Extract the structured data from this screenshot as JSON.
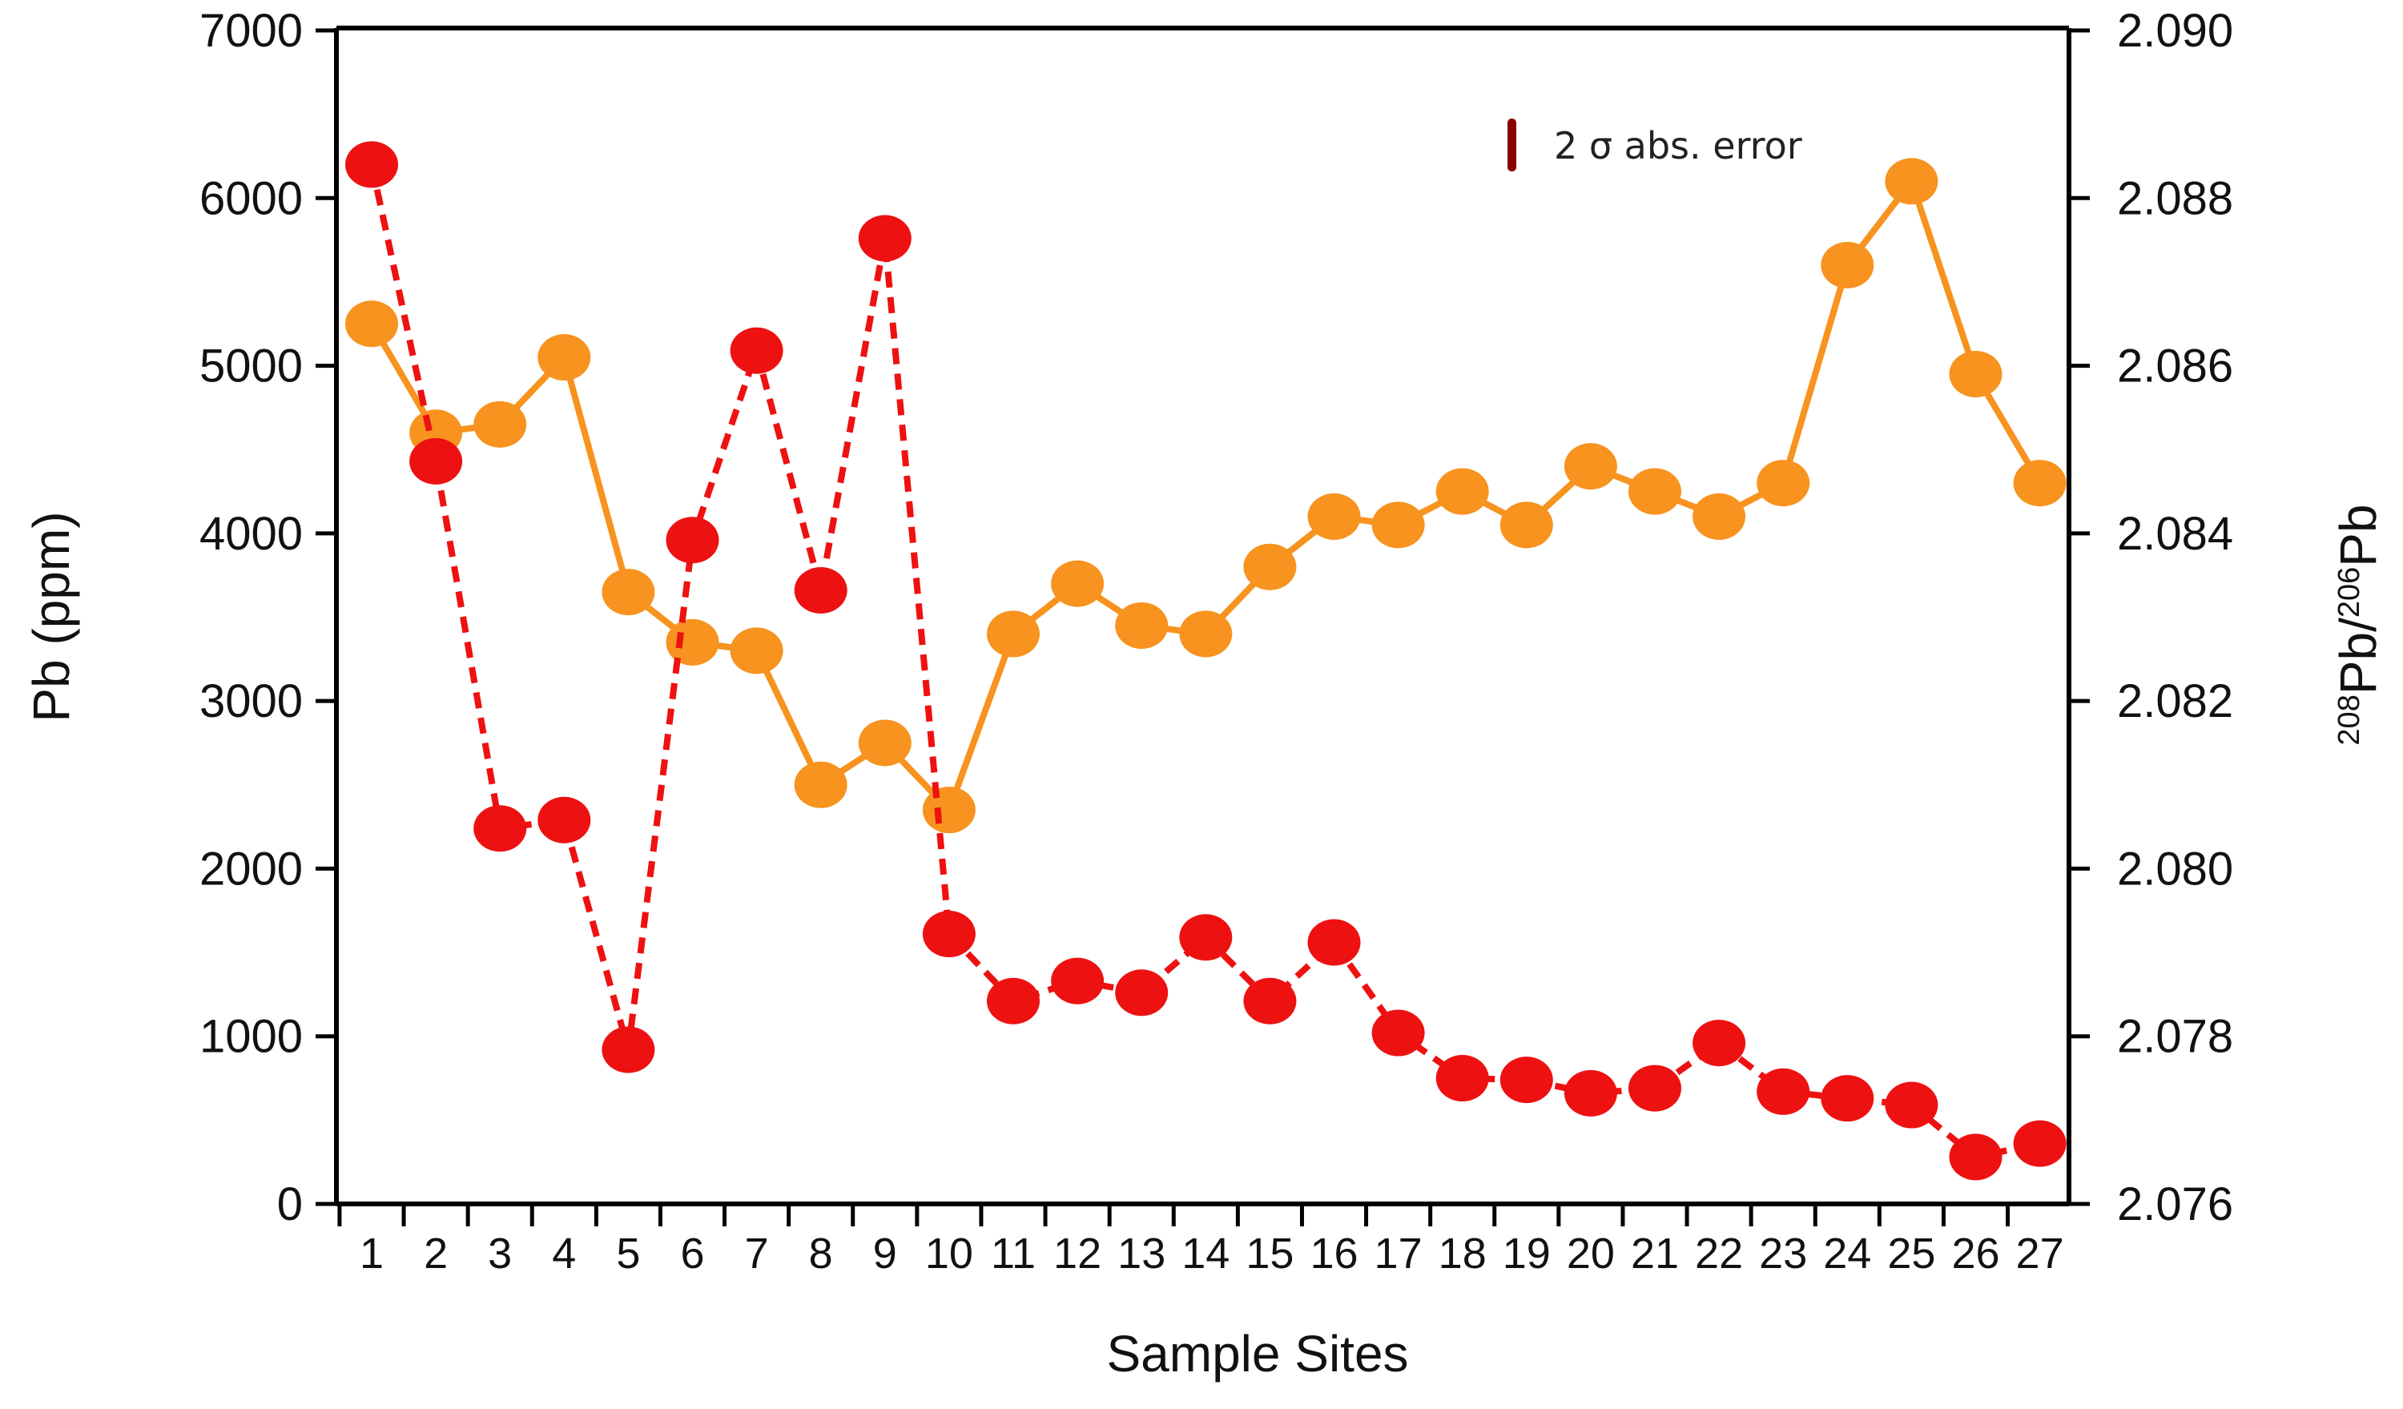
{
  "chart_data": {
    "type": "line",
    "xlabel": "Sample Sites",
    "ylabel_left": "Pb (ppm)",
    "ylabel_right": {
      "sup1": "208",
      "main1": "Pb/",
      "sup2": "206",
      "main2": "Pb"
    },
    "legend": {
      "label": "2 σ abs. error",
      "color": "#8b0000"
    },
    "categories": [
      "1",
      "2",
      "3",
      "4",
      "5",
      "6",
      "7",
      "8",
      "9",
      "10",
      "11",
      "12",
      "13",
      "14",
      "15",
      "16",
      "17",
      "18",
      "19",
      "20",
      "21",
      "22",
      "23",
      "24",
      "25",
      "26",
      "27"
    ],
    "left_axis": {
      "ylim": [
        0,
        7000
      ],
      "ticks": [
        0,
        1000,
        2000,
        3000,
        4000,
        5000,
        6000,
        7000
      ],
      "tick_labels": [
        "0",
        "1000",
        "2000",
        "3000",
        "4000",
        "5000",
        "6000",
        "7000"
      ]
    },
    "right_axis": {
      "ylim": [
        2.076,
        2.09
      ],
      "ticks": [
        2.076,
        2.078,
        2.08,
        2.082,
        2.084,
        2.086,
        2.088,
        2.09
      ],
      "tick_labels": [
        "2.076",
        "2.078",
        "2.080",
        "2.082",
        "2.084",
        "2.086",
        "2.088",
        "2.090"
      ]
    },
    "series": [
      {
        "axis": "left",
        "color": "#ee1111",
        "style": "dashed",
        "values": [
          6200,
          4430,
          2240,
          2290,
          920,
          3960,
          5090,
          3660,
          5760,
          1610,
          1210,
          1330,
          1260,
          1590,
          1210,
          1560,
          1020,
          750,
          740,
          660,
          690,
          960,
          670,
          630,
          590,
          280,
          360
        ]
      },
      {
        "axis": "right",
        "color": "#f7931e",
        "style": "solid",
        "values": [
          2.0865,
          2.0852,
          2.0853,
          2.0861,
          2.0833,
          2.0827,
          2.0826,
          2.081,
          2.0815,
          2.0807,
          2.0828,
          2.0834,
          2.0829,
          2.0828,
          2.0836,
          2.0842,
          2.0841,
          2.0845,
          2.0841,
          2.0848,
          2.0845,
          2.0842,
          2.0846,
          2.0872,
          2.0882,
          2.0859,
          2.0846
        ]
      }
    ]
  }
}
